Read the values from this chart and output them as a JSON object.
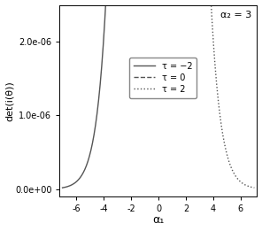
{
  "alpha1_range": [
    -7,
    7
  ],
  "alpha2": 3,
  "tau_values": [
    -2,
    0,
    2
  ],
  "line_styles": [
    "-",
    "--",
    ":"
  ],
  "line_colors": [
    "#555555",
    "#555555",
    "#555555"
  ],
  "legend_labels": [
    "τ = −2",
    "τ = 0",
    "τ = 2"
  ],
  "xlabel": "α₁",
  "ylabel": "det(i(θ))",
  "annotation": "α₂ = 3",
  "xlim": [
    -7.2,
    7.2
  ],
  "ylim": [
    -1e-07,
    2.5e-06
  ],
  "yticks": [
    0.0,
    1e-06,
    2e-06
  ],
  "ytick_labels": [
    "0.0e+00",
    "1.0e-06",
    "2.0e-06"
  ],
  "xticks": [
    -6,
    -4,
    -2,
    0,
    2,
    4,
    6
  ],
  "background_color": "#ffffff",
  "n_points": 500
}
